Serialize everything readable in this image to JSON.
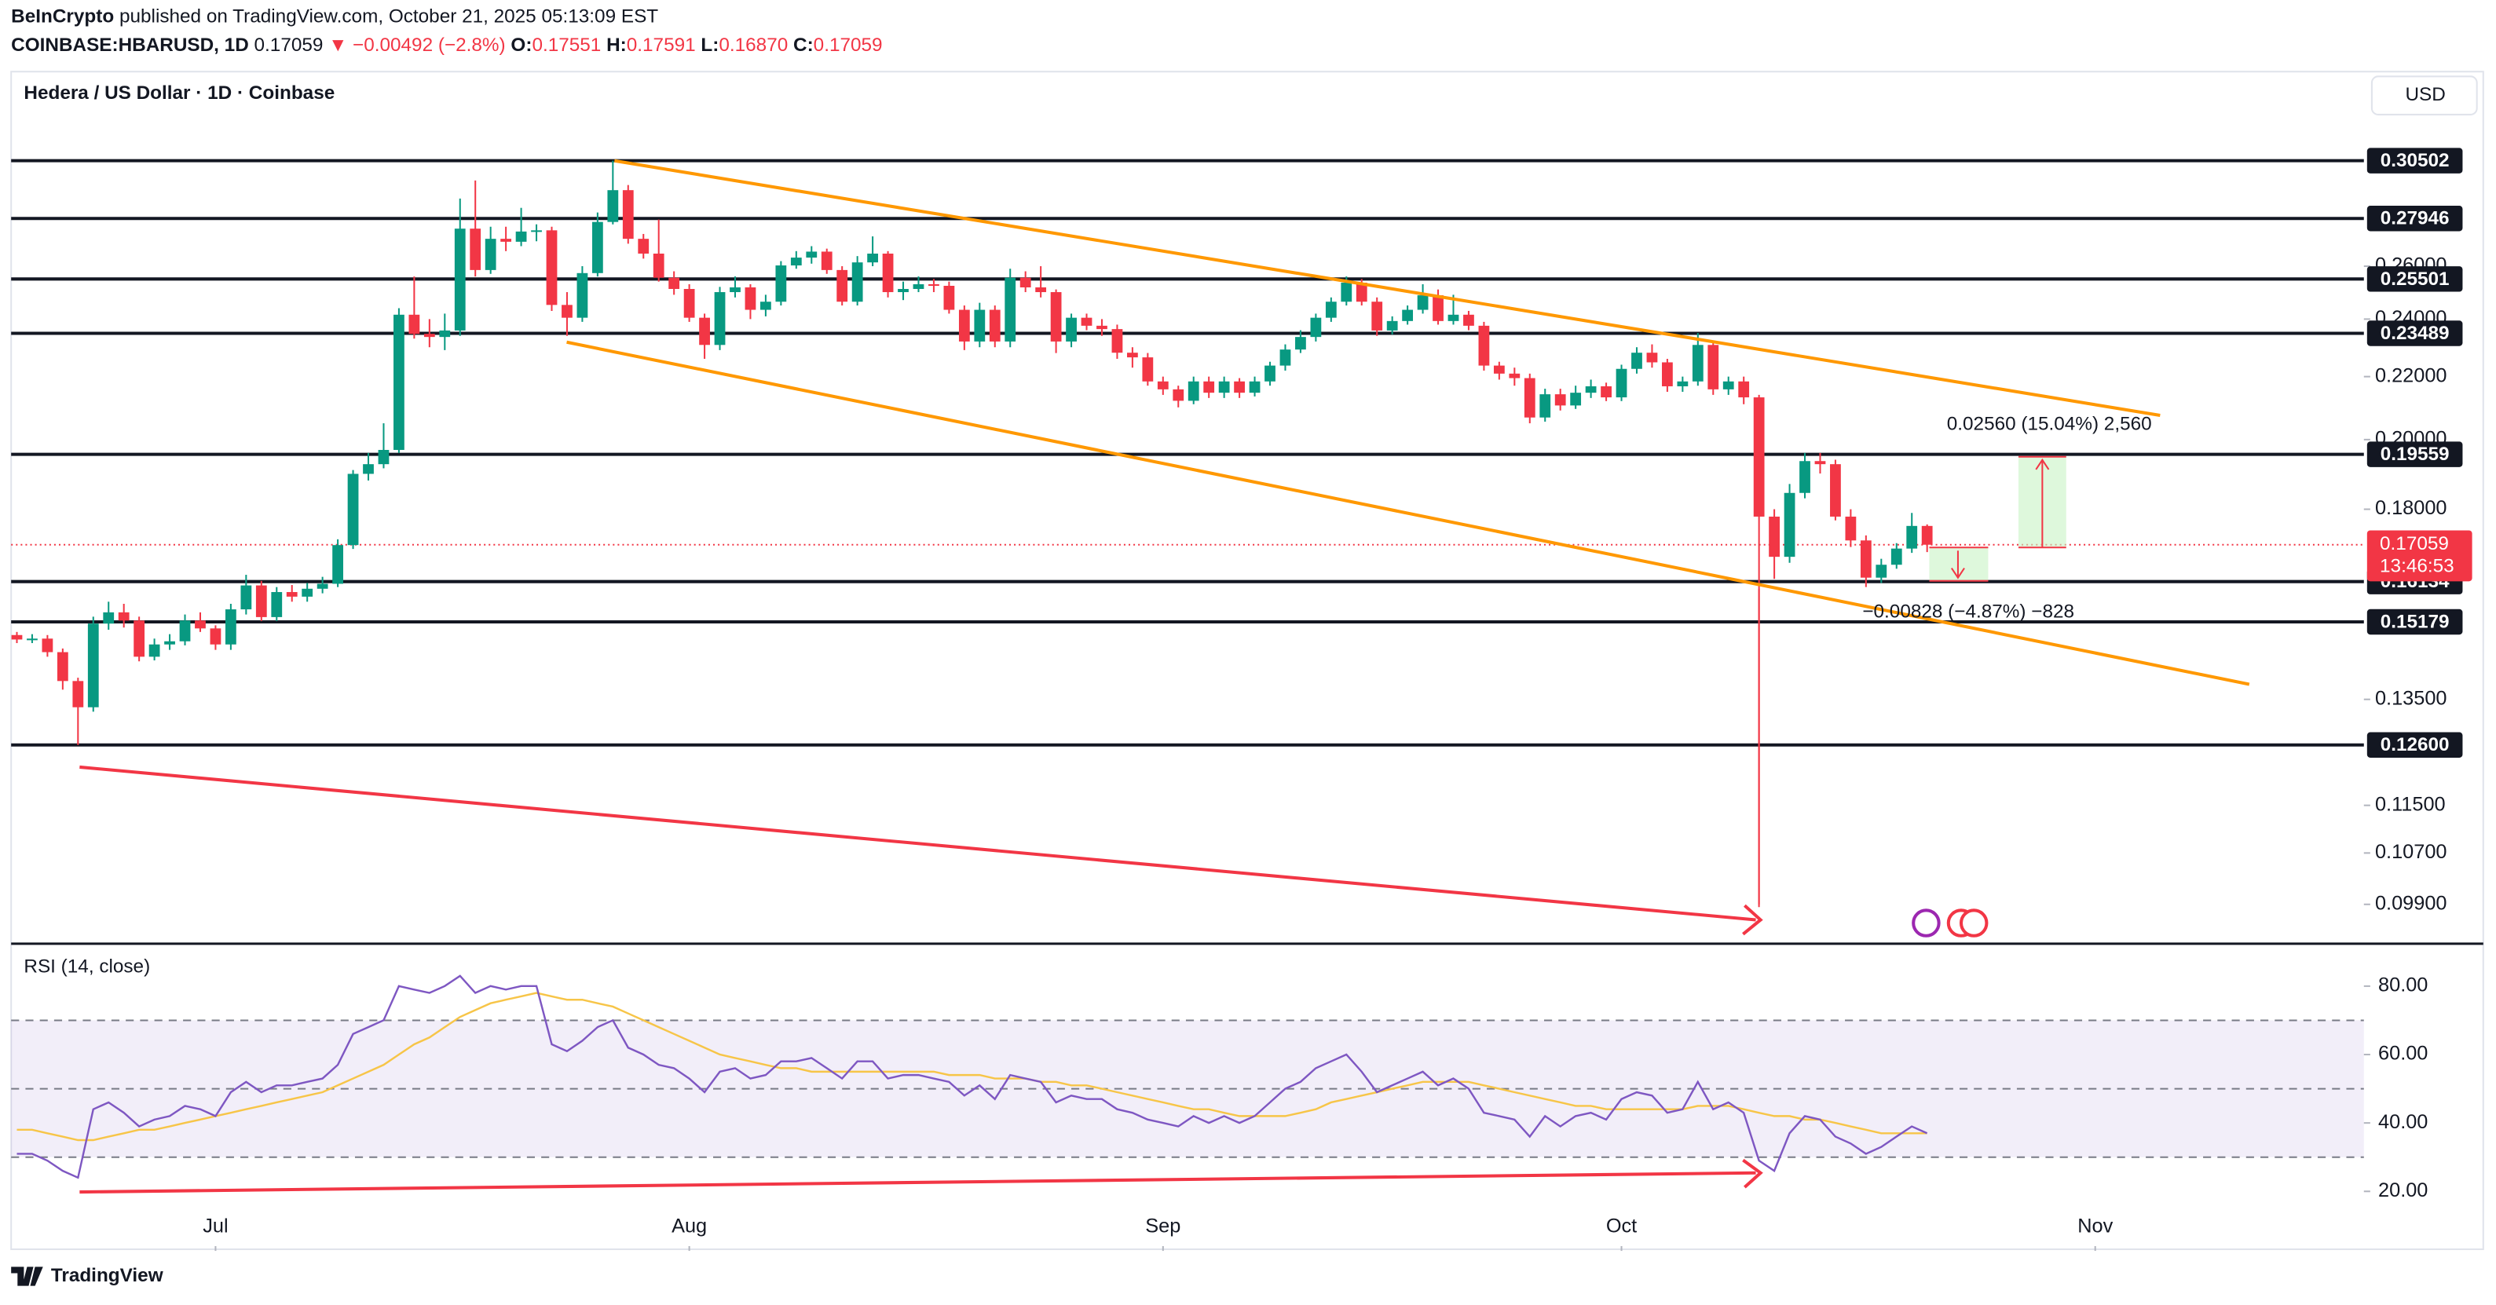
{
  "header": {
    "publisher": "BeInCrypto",
    "published": "published on TradingView.com, October 21, 2025 05:13:09 EST",
    "symbol": "COINBASE:HBARUSD, 1D",
    "price": "0.17059",
    "change": "▼ −0.00492 (−2.8%)",
    "ohlc": [
      {
        "key": "O:",
        "value": "0.17551"
      },
      {
        "key": "H:",
        "value": "0.17591"
      },
      {
        "key": "L:",
        "value": "0.16870"
      },
      {
        "key": "C:",
        "value": "0.17059"
      }
    ],
    "pane_title": "Hedera / US Dollar · 1D · Coinbase",
    "currency": "USD",
    "countdown": "13:46:53",
    "long_label": "0.02560 (15.04%) 2,560",
    "short_label": "−0.00828 (−4.87%) −828",
    "brand": "TradingView"
  },
  "chart_data": [
    {
      "type": "candlestick",
      "log_scale": true,
      "up_color": "#089981",
      "down_color": "#f23645",
      "xlim": [
        -1,
        153.58
      ],
      "ylim": [
        0.0935,
        0.349
      ],
      "yticks": [
        {
          "value": 0.26,
          "label": "0.26000"
        },
        {
          "value": 0.24,
          "label": "0.24000"
        },
        {
          "value": 0.22,
          "label": "0.22000"
        },
        {
          "value": 0.2,
          "label": "0.20000"
        },
        {
          "value": 0.18,
          "label": "0.18000"
        },
        {
          "value": 0.135,
          "label": "0.13500"
        },
        {
          "value": 0.115,
          "label": "0.11500"
        },
        {
          "value": 0.107,
          "label": "0.10700"
        },
        {
          "value": 0.099,
          "label": "0.09900"
        }
      ],
      "levels": [
        0.30502,
        0.27946,
        0.25501,
        0.23489,
        0.19559,
        0.16134,
        0.15179,
        {
          "value": 0.126,
          "label": "0.12600"
        }
      ],
      "candles": [
        [
          0.1488,
          0.1495,
          0.147,
          0.1478
        ],
        [
          0.1478,
          0.149,
          0.147,
          0.148
        ],
        [
          0.148,
          0.1488,
          0.144,
          0.145
        ],
        [
          0.145,
          0.1458,
          0.137,
          0.1388
        ],
        [
          0.1388,
          0.1395,
          0.126,
          0.1334
        ],
        [
          0.1334,
          0.153,
          0.1325,
          0.1514
        ],
        [
          0.1514,
          0.1565,
          0.15,
          0.154
        ],
        [
          0.154,
          0.156,
          0.1505,
          0.1521
        ],
        [
          0.1521,
          0.153,
          0.143,
          0.144
        ],
        [
          0.144,
          0.148,
          0.1432,
          0.1467
        ],
        [
          0.1467,
          0.149,
          0.1455,
          0.1474
        ],
        [
          0.1474,
          0.1535,
          0.1465,
          0.1521
        ],
        [
          0.1521,
          0.154,
          0.1495,
          0.1503
        ],
        [
          0.1503,
          0.151,
          0.1455,
          0.1467
        ],
        [
          0.1467,
          0.156,
          0.1455,
          0.1547
        ],
        [
          0.1547,
          0.163,
          0.1535,
          0.1604
        ],
        [
          0.1604,
          0.1615,
          0.152,
          0.1529
        ],
        [
          0.1529,
          0.16,
          0.152,
          0.1588
        ],
        [
          0.1588,
          0.1605,
          0.1565,
          0.1577
        ],
        [
          0.1577,
          0.161,
          0.1565,
          0.1596
        ],
        [
          0.1596,
          0.1625,
          0.1585,
          0.1608
        ],
        [
          0.1608,
          0.172,
          0.16,
          0.1705
        ],
        [
          0.1705,
          0.191,
          0.1695,
          0.1899
        ],
        [
          0.1899,
          0.196,
          0.188,
          0.1927
        ],
        [
          0.1927,
          0.205,
          0.1915,
          0.1969
        ],
        [
          0.1969,
          0.244,
          0.196,
          0.2416
        ],
        [
          0.2416,
          0.256,
          0.233,
          0.2347
        ],
        [
          0.2347,
          0.24,
          0.23,
          0.2336
        ],
        [
          0.2336,
          0.242,
          0.229,
          0.2359
        ],
        [
          0.2359,
          0.288,
          0.234,
          0.2752
        ],
        [
          0.2752,
          0.296,
          0.256,
          0.2585
        ],
        [
          0.2585,
          0.276,
          0.257,
          0.271
        ],
        [
          0.271,
          0.276,
          0.266,
          0.2698
        ],
        [
          0.2698,
          0.284,
          0.268,
          0.274
        ],
        [
          0.274,
          0.277,
          0.27,
          0.2745
        ],
        [
          0.2745,
          0.276,
          0.243,
          0.2452
        ],
        [
          0.2452,
          0.25,
          0.234,
          0.2405
        ],
        [
          0.2405,
          0.26,
          0.239,
          0.2573
        ],
        [
          0.2573,
          0.282,
          0.256,
          0.278
        ],
        [
          0.278,
          0.305,
          0.277,
          0.2917
        ],
        [
          0.2917,
          0.294,
          0.269,
          0.271
        ],
        [
          0.271,
          0.273,
          0.263,
          0.265
        ],
        [
          0.265,
          0.279,
          0.254,
          0.2555
        ],
        [
          0.2555,
          0.258,
          0.249,
          0.2512
        ],
        [
          0.2512,
          0.253,
          0.239,
          0.2405
        ],
        [
          0.2405,
          0.242,
          0.226,
          0.2308
        ],
        [
          0.2308,
          0.252,
          0.229,
          0.25
        ],
        [
          0.25,
          0.256,
          0.248,
          0.2518
        ],
        [
          0.2518,
          0.253,
          0.24,
          0.2434
        ],
        [
          0.2434,
          0.249,
          0.241,
          0.2464
        ],
        [
          0.2464,
          0.262,
          0.245,
          0.2603
        ],
        [
          0.2603,
          0.266,
          0.259,
          0.2634
        ],
        [
          0.2634,
          0.268,
          0.261,
          0.2658
        ],
        [
          0.2658,
          0.267,
          0.257,
          0.2585
        ],
        [
          0.2585,
          0.26,
          0.245,
          0.2464
        ],
        [
          0.2464,
          0.264,
          0.245,
          0.2615
        ],
        [
          0.2615,
          0.272,
          0.26,
          0.265
        ],
        [
          0.265,
          0.266,
          0.248,
          0.25
        ],
        [
          0.25,
          0.254,
          0.247,
          0.2512
        ],
        [
          0.2512,
          0.256,
          0.25,
          0.253
        ],
        [
          0.253,
          0.255,
          0.25,
          0.2524
        ],
        [
          0.2524,
          0.254,
          0.242,
          0.2434
        ],
        [
          0.2434,
          0.245,
          0.229,
          0.232
        ],
        [
          0.232,
          0.246,
          0.23,
          0.2434
        ],
        [
          0.2434,
          0.245,
          0.23,
          0.232
        ],
        [
          0.232,
          0.259,
          0.23,
          0.2555
        ],
        [
          0.2555,
          0.258,
          0.25,
          0.2518
        ],
        [
          0.2518,
          0.26,
          0.248,
          0.25
        ],
        [
          0.25,
          0.251,
          0.228,
          0.232
        ],
        [
          0.232,
          0.242,
          0.23,
          0.2405
        ],
        [
          0.2405,
          0.242,
          0.236,
          0.2376
        ],
        [
          0.2376,
          0.24,
          0.234,
          0.2364
        ],
        [
          0.2364,
          0.238,
          0.226,
          0.2281
        ],
        [
          0.2281,
          0.23,
          0.223,
          0.2265
        ],
        [
          0.2265,
          0.228,
          0.217,
          0.2184
        ],
        [
          0.2184,
          0.22,
          0.214,
          0.2158
        ],
        [
          0.2158,
          0.217,
          0.21,
          0.2121
        ],
        [
          0.2121,
          0.22,
          0.211,
          0.2184
        ],
        [
          0.2184,
          0.22,
          0.213,
          0.2147
        ],
        [
          0.2147,
          0.22,
          0.213,
          0.2184
        ],
        [
          0.2184,
          0.2195,
          0.213,
          0.2147
        ],
        [
          0.2147,
          0.22,
          0.2135,
          0.2184
        ],
        [
          0.2184,
          0.225,
          0.217,
          0.2237
        ],
        [
          0.2237,
          0.231,
          0.222,
          0.2292
        ],
        [
          0.2292,
          0.236,
          0.228,
          0.2336
        ],
        [
          0.2336,
          0.242,
          0.232,
          0.2405
        ],
        [
          0.2405,
          0.248,
          0.239,
          0.2464
        ],
        [
          0.2464,
          0.256,
          0.245,
          0.2536
        ],
        [
          0.2536,
          0.255,
          0.245,
          0.2464
        ],
        [
          0.2464,
          0.248,
          0.234,
          0.2359
        ],
        [
          0.2359,
          0.241,
          0.2345,
          0.2393
        ],
        [
          0.2393,
          0.245,
          0.238,
          0.2434
        ],
        [
          0.2434,
          0.253,
          0.242,
          0.2488
        ],
        [
          0.2488,
          0.251,
          0.238,
          0.2393
        ],
        [
          0.2393,
          0.249,
          0.238,
          0.2416
        ],
        [
          0.2416,
          0.243,
          0.236,
          0.2376
        ],
        [
          0.2376,
          0.239,
          0.222,
          0.2237
        ],
        [
          0.2237,
          0.225,
          0.219,
          0.221
        ],
        [
          0.221,
          0.223,
          0.217,
          0.2195
        ],
        [
          0.2195,
          0.221,
          0.205,
          0.2068
        ],
        [
          0.2068,
          0.216,
          0.2055,
          0.2142
        ],
        [
          0.2142,
          0.216,
          0.209,
          0.2106
        ],
        [
          0.2106,
          0.217,
          0.2095,
          0.2147
        ],
        [
          0.2147,
          0.219,
          0.213,
          0.2168
        ],
        [
          0.2168,
          0.218,
          0.212,
          0.2132
        ],
        [
          0.2132,
          0.224,
          0.212,
          0.2226
        ],
        [
          0.2226,
          0.23,
          0.221,
          0.2281
        ],
        [
          0.2281,
          0.231,
          0.223,
          0.2248
        ],
        [
          0.2248,
          0.226,
          0.215,
          0.2168
        ],
        [
          0.2168,
          0.22,
          0.215,
          0.2184
        ],
        [
          0.2184,
          0.235,
          0.217,
          0.2308
        ],
        [
          0.2308,
          0.232,
          0.214,
          0.2158
        ],
        [
          0.2158,
          0.22,
          0.214,
          0.2184
        ],
        [
          0.2184,
          0.22,
          0.211,
          0.2132
        ],
        [
          0.2132,
          0.214,
          0.099,
          0.178
        ],
        [
          0.178,
          0.18,
          0.162,
          0.1675
        ],
        [
          0.1675,
          0.187,
          0.166,
          0.1845
        ],
        [
          0.1845,
          0.196,
          0.183,
          0.1936
        ],
        [
          0.1936,
          0.196,
          0.19,
          0.1927
        ],
        [
          0.1927,
          0.194,
          0.177,
          0.178
        ],
        [
          0.178,
          0.18,
          0.17,
          0.1717
        ],
        [
          0.1717,
          0.173,
          0.16,
          0.1623
        ],
        [
          0.1623,
          0.167,
          0.161,
          0.1655
        ],
        [
          0.1655,
          0.171,
          0.1645,
          0.1696
        ],
        [
          0.1696,
          0.179,
          0.1685,
          0.17551
        ],
        [
          0.17551,
          0.17591,
          0.1687,
          0.17059
        ]
      ]
    },
    {
      "type": "line",
      "title": "RSI (14, close)",
      "xlim": [
        -1,
        153.58
      ],
      "ylim": [
        4,
        91
      ],
      "xticks": [
        {
          "value": 13,
          "label": "Jul"
        },
        {
          "value": 44,
          "label": "Aug"
        },
        {
          "value": 75,
          "label": "Sep"
        },
        {
          "value": 105,
          "label": "Oct"
        },
        {
          "value": 136,
          "label": "Nov"
        }
      ],
      "yticks": [
        {
          "value": 80,
          "label": "80.00"
        },
        {
          "value": 60,
          "label": "60.00"
        },
        {
          "value": 40,
          "label": "40.00"
        },
        {
          "value": 20,
          "label": "20.00"
        }
      ],
      "band": [
        30,
        70
      ],
      "band_color": "#7e57c2",
      "levels": [
        70,
        50,
        30
      ],
      "series": [
        {
          "color": "#7e57c2",
          "values": [
            31,
            31,
            29,
            26,
            24,
            44,
            46,
            43,
            39,
            41,
            42,
            45,
            44,
            42,
            49,
            52,
            49,
            51,
            51,
            52,
            53,
            57,
            66,
            68,
            70,
            80,
            79,
            78,
            80,
            83,
            78,
            80,
            79,
            80,
            80,
            63,
            61,
            64,
            68,
            70,
            62,
            60,
            57,
            56,
            53,
            49,
            55,
            56,
            53,
            54,
            58,
            58,
            59,
            56,
            53,
            58,
            58,
            53,
            54,
            54,
            53,
            52,
            48,
            51,
            47,
            54,
            53,
            52,
            46,
            48,
            47,
            47,
            44,
            43,
            41,
            40,
            39,
            42,
            40,
            42,
            40,
            42,
            46,
            50,
            52,
            56,
            58,
            60,
            55,
            49,
            51,
            53,
            55,
            51,
            53,
            50,
            43,
            42,
            41,
            36,
            42,
            39,
            42,
            43,
            41,
            47,
            49,
            48,
            43,
            44,
            52,
            44,
            46,
            43,
            29,
            26,
            37,
            42,
            41,
            36,
            34,
            31,
            33,
            36,
            39,
            37
          ]
        },
        {
          "color": "#f7c548",
          "values": [
            38,
            38,
            37,
            36,
            35,
            35,
            36,
            37,
            38,
            38,
            39,
            40,
            41,
            42,
            43,
            44,
            45,
            46,
            47,
            48,
            49,
            51,
            53,
            55,
            57,
            60,
            63,
            65,
            68,
            71,
            73,
            75,
            76,
            77,
            78,
            77,
            76,
            76,
            75,
            74,
            72,
            70,
            68,
            66,
            64,
            62,
            60,
            59,
            58,
            57,
            56,
            56,
            55,
            55,
            55,
            55,
            55,
            55,
            55,
            55,
            55,
            54,
            54,
            54,
            53,
            53,
            53,
            52,
            52,
            51,
            51,
            50,
            49,
            48,
            47,
            46,
            45,
            44,
            44,
            43,
            42,
            42,
            42,
            42,
            43,
            44,
            46,
            47,
            48,
            49,
            50,
            51,
            52,
            52,
            52,
            52,
            51,
            50,
            49,
            48,
            47,
            46,
            45,
            45,
            44,
            44,
            44,
            44,
            44,
            44,
            45,
            45,
            45,
            44,
            43,
            42,
            42,
            41,
            41,
            40,
            39,
            38,
            37,
            37,
            37,
            37
          ]
        }
      ]
    }
  ]
}
